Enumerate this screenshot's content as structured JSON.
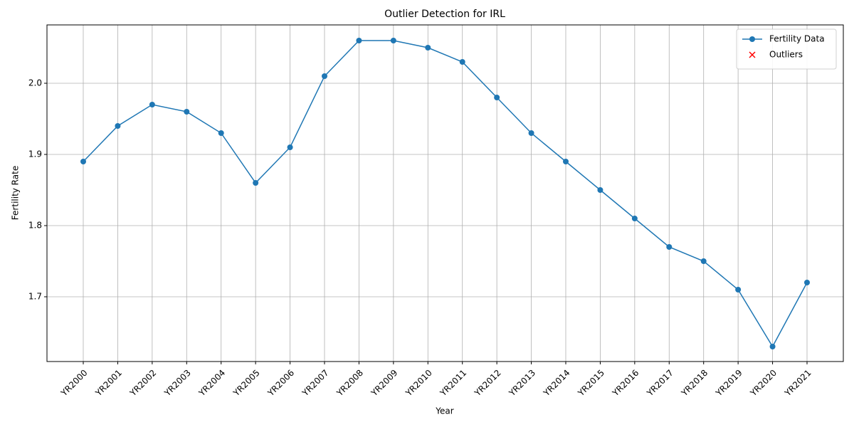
{
  "chart_data": {
    "type": "line",
    "title": "Outlier Detection for IRL",
    "xlabel": "Year",
    "ylabel": "Fertility Rate",
    "categories": [
      "YR2000",
      "YR2001",
      "YR2002",
      "YR2003",
      "YR2004",
      "YR2005",
      "YR2006",
      "YR2007",
      "YR2008",
      "YR2009",
      "YR2010",
      "YR2011",
      "YR2012",
      "YR2013",
      "YR2014",
      "YR2015",
      "YR2016",
      "YR2017",
      "YR2018",
      "YR2019",
      "YR2020",
      "YR2021"
    ],
    "series": [
      {
        "name": "Fertility Data",
        "color": "#1f77b4",
        "marker": "o",
        "values": [
          1.89,
          1.94,
          1.97,
          1.96,
          1.93,
          1.86,
          1.91,
          2.01,
          2.06,
          2.06,
          2.05,
          2.03,
          1.98,
          1.93,
          1.89,
          1.85,
          1.81,
          1.77,
          1.75,
          1.71,
          1.63,
          1.72
        ]
      },
      {
        "name": "Outliers",
        "color": "#ff0000",
        "marker": "x",
        "values": [
          null,
          null,
          null,
          null,
          null,
          null,
          null,
          null,
          null,
          null,
          null,
          null,
          null,
          null,
          null,
          null,
          null,
          null,
          null,
          null,
          null,
          null
        ]
      }
    ],
    "ylim": [
      1.609,
      2.082
    ],
    "yticks": [
      {
        "value": 1.7,
        "label": "1.7"
      },
      {
        "value": 1.8,
        "label": "1.8"
      },
      {
        "value": 1.9,
        "label": "1.9"
      },
      {
        "value": 2.0,
        "label": "2.0"
      }
    ],
    "grid": true,
    "legend": "upper right"
  }
}
